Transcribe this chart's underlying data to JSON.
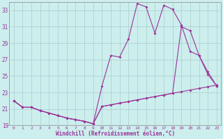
{
  "xlabel": "Windchill (Refroidissement éolien,°C)",
  "background_color": "#cceeed",
  "grid_color": "#aacccc",
  "line_color": "#993399",
  "xlim": [
    -0.5,
    23.5
  ],
  "ylim": [
    19,
    34
  ],
  "yticks": [
    19,
    21,
    23,
    25,
    27,
    29,
    31,
    33
  ],
  "xticks": [
    0,
    1,
    2,
    3,
    4,
    5,
    6,
    7,
    8,
    9,
    10,
    11,
    12,
    13,
    14,
    15,
    16,
    17,
    18,
    19,
    20,
    21,
    22,
    23
  ],
  "line1_x": [
    0,
    1,
    2,
    3,
    4,
    5,
    6,
    7,
    8,
    9,
    10,
    11,
    12,
    13,
    14,
    15,
    16,
    17,
    18,
    19,
    20,
    21,
    22,
    23
  ],
  "line1_y": [
    22.0,
    21.2,
    21.2,
    20.8,
    20.5,
    20.2,
    19.9,
    19.7,
    19.5,
    19.2,
    21.3,
    21.5,
    21.7,
    21.9,
    22.1,
    22.3,
    22.5,
    22.7,
    22.9,
    23.1,
    23.3,
    23.5,
    23.7,
    23.9
  ],
  "line2_x": [
    0,
    1,
    2,
    3,
    4,
    5,
    6,
    7,
    8,
    9,
    10,
    11,
    12,
    13,
    14,
    15,
    16,
    17,
    18,
    19,
    20,
    21,
    22,
    23
  ],
  "line2_y": [
    22.0,
    21.2,
    21.2,
    20.8,
    20.5,
    20.2,
    19.9,
    19.7,
    19.5,
    19.2,
    23.8,
    27.5,
    27.3,
    29.5,
    33.8,
    33.4,
    30.2,
    33.6,
    33.1,
    31.2,
    28.0,
    27.5,
    25.5,
    23.8
  ],
  "line3_x": [
    0,
    1,
    2,
    3,
    4,
    5,
    6,
    7,
    8,
    9,
    10,
    11,
    12,
    13,
    14,
    15,
    16,
    17,
    18,
    19,
    20,
    21,
    22,
    23
  ],
  "line3_y": [
    22.0,
    21.2,
    21.2,
    20.8,
    20.5,
    20.2,
    19.9,
    19.7,
    19.5,
    19.2,
    21.3,
    21.5,
    21.7,
    21.9,
    22.1,
    22.3,
    22.5,
    22.7,
    22.9,
    31.0,
    30.5,
    27.5,
    25.2,
    23.8
  ]
}
